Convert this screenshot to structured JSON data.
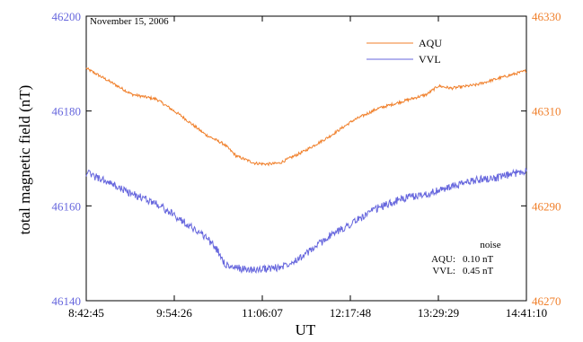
{
  "chart_data": {
    "type": "line",
    "annotation": "November 15, 2006",
    "xlabel": "UT",
    "ylabel_left": "total magnetic field (nT)",
    "x_ticks": [
      "8:42:45",
      "9:54:26",
      "11:06:07",
      "12:17:48",
      "13:29:29",
      "14:41:10"
    ],
    "x_range": [
      "8:42:45",
      "14:41:10"
    ],
    "y_left": {
      "range": [
        46140,
        46200
      ],
      "ticks": [
        46140,
        46160,
        46180,
        46200
      ],
      "color": "#6666dd"
    },
    "y_right": {
      "range": [
        46270,
        46330
      ],
      "ticks": [
        46270,
        46290,
        46310,
        46330
      ],
      "color": "#f07f2a"
    },
    "grid": false,
    "legend_position": "top-right",
    "series": [
      {
        "name": "AQU",
        "axis": "right",
        "color": "#f07f2a",
        "noise_amplitude": 0.3,
        "x": [
          "8:42:45",
          "9:00:00",
          "9:20:00",
          "9:40:00",
          "10:00:00",
          "10:20:00",
          "10:35:00",
          "10:45:00",
          "11:00:00",
          "11:10:00",
          "11:20:00",
          "11:40:00",
          "12:00:00",
          "12:20:00",
          "12:40:00",
          "13:00:00",
          "13:20:00",
          "13:29:29",
          "13:40:00",
          "14:00:00",
          "14:20:00",
          "14:41:10"
        ],
        "values": [
          46319.0,
          46316.5,
          46313.5,
          46312.5,
          46309.0,
          46305.0,
          46303.0,
          46300.5,
          46299.0,
          46298.8,
          46299.0,
          46301.5,
          46304.5,
          46308.0,
          46310.5,
          46312.0,
          46313.5,
          46315.3,
          46314.8,
          46315.5,
          46317.0,
          46318.5
        ]
      },
      {
        "name": "VVL",
        "axis": "left",
        "color": "#6666dd",
        "noise_amplitude": 0.8,
        "x": [
          "8:42:45",
          "9:00:00",
          "9:20:00",
          "9:40:00",
          "10:00:00",
          "10:20:00",
          "10:30:00",
          "10:35:00",
          "10:40:00",
          "11:00:00",
          "11:20:00",
          "11:40:00",
          "12:00:00",
          "12:20:00",
          "12:40:00",
          "13:00:00",
          "13:20:00",
          "13:40:00",
          "14:00:00",
          "14:20:00",
          "14:41:10"
        ],
        "values": [
          46167.0,
          46165.0,
          46162.5,
          46160.5,
          46157.0,
          46153.5,
          46150.5,
          46148.0,
          46147.0,
          46146.5,
          46147.0,
          46149.5,
          46153.5,
          46156.5,
          46159.5,
          46161.5,
          46162.5,
          46164.0,
          46165.5,
          46166.0,
          46167.5
        ]
      }
    ],
    "noise_box": {
      "title": "noise",
      "rows": [
        {
          "label": "AQU:",
          "value": "0.10 nT"
        },
        {
          "label": "VVL:",
          "value": "0.45 nT"
        }
      ]
    }
  }
}
